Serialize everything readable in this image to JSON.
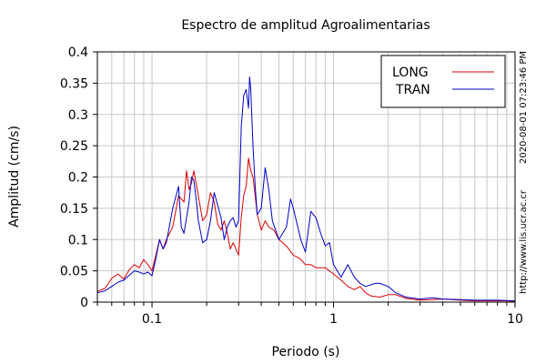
{
  "chart_data": {
    "type": "line",
    "title": "Espectro de amplitud Agroalimentarias",
    "xlabel": "Periodo (s)",
    "ylabel": "Amplitud (cm/s)",
    "x_scale": "log",
    "xlim": [
      0.05,
      10
    ],
    "ylim": [
      0,
      0.4
    ],
    "grid": true,
    "legend_position": "top-right",
    "x_ticks": [
      {
        "value": 0.1,
        "label": "0.1"
      },
      {
        "value": 1,
        "label": "1"
      },
      {
        "value": 10,
        "label": "10"
      }
    ],
    "y_ticks": [
      {
        "value": 0,
        "label": "0"
      },
      {
        "value": 0.05,
        "label": "0.05"
      },
      {
        "value": 0.1,
        "label": "0.1"
      },
      {
        "value": 0.15,
        "label": "0.15"
      },
      {
        "value": 0.2,
        "label": "0.2"
      },
      {
        "value": 0.25,
        "label": "0.25"
      },
      {
        "value": 0.3,
        "label": "0.3"
      },
      {
        "value": 0.35,
        "label": "0.35"
      },
      {
        "value": 0.4,
        "label": "0.4"
      }
    ],
    "series": [
      {
        "name": "LONG",
        "color": "#dd0000",
        "points": [
          [
            0.05,
            0.017
          ],
          [
            0.055,
            0.022
          ],
          [
            0.06,
            0.038
          ],
          [
            0.065,
            0.045
          ],
          [
            0.07,
            0.037
          ],
          [
            0.075,
            0.052
          ],
          [
            0.08,
            0.06
          ],
          [
            0.085,
            0.055
          ],
          [
            0.09,
            0.068
          ],
          [
            0.095,
            0.06
          ],
          [
            0.1,
            0.05
          ],
          [
            0.105,
            0.075
          ],
          [
            0.11,
            0.1
          ],
          [
            0.115,
            0.085
          ],
          [
            0.12,
            0.1
          ],
          [
            0.13,
            0.12
          ],
          [
            0.14,
            0.17
          ],
          [
            0.15,
            0.16
          ],
          [
            0.155,
            0.21
          ],
          [
            0.16,
            0.18
          ],
          [
            0.165,
            0.19
          ],
          [
            0.17,
            0.21
          ],
          [
            0.18,
            0.17
          ],
          [
            0.19,
            0.13
          ],
          [
            0.2,
            0.14
          ],
          [
            0.21,
            0.175
          ],
          [
            0.22,
            0.16
          ],
          [
            0.23,
            0.125
          ],
          [
            0.24,
            0.115
          ],
          [
            0.25,
            0.13
          ],
          [
            0.26,
            0.11
          ],
          [
            0.27,
            0.085
          ],
          [
            0.28,
            0.095
          ],
          [
            0.3,
            0.075
          ],
          [
            0.31,
            0.135
          ],
          [
            0.32,
            0.17
          ],
          [
            0.33,
            0.185
          ],
          [
            0.34,
            0.23
          ],
          [
            0.35,
            0.21
          ],
          [
            0.36,
            0.2
          ],
          [
            0.37,
            0.17
          ],
          [
            0.38,
            0.14
          ],
          [
            0.4,
            0.115
          ],
          [
            0.42,
            0.13
          ],
          [
            0.44,
            0.12
          ],
          [
            0.47,
            0.115
          ],
          [
            0.5,
            0.1
          ],
          [
            0.55,
            0.09
          ],
          [
            0.6,
            0.075
          ],
          [
            0.65,
            0.07
          ],
          [
            0.7,
            0.06
          ],
          [
            0.75,
            0.06
          ],
          [
            0.8,
            0.055
          ],
          [
            0.9,
            0.055
          ],
          [
            1.0,
            0.045
          ],
          [
            1.1,
            0.035
          ],
          [
            1.2,
            0.025
          ],
          [
            1.3,
            0.02
          ],
          [
            1.4,
            0.025
          ],
          [
            1.5,
            0.015
          ],
          [
            1.6,
            0.01
          ],
          [
            1.8,
            0.008
          ],
          [
            2.0,
            0.012
          ],
          [
            2.2,
            0.012
          ],
          [
            2.5,
            0.006
          ],
          [
            3,
            0.003
          ],
          [
            3.5,
            0.004
          ],
          [
            4,
            0.005
          ],
          [
            5,
            0.003
          ],
          [
            6,
            0.002
          ],
          [
            7,
            0.002
          ],
          [
            8,
            0.002
          ],
          [
            9,
            0.002
          ],
          [
            10,
            0.001
          ]
        ]
      },
      {
        "name": "TRAN",
        "color": "#0000cc",
        "points": [
          [
            0.05,
            0.015
          ],
          [
            0.055,
            0.018
          ],
          [
            0.06,
            0.025
          ],
          [
            0.065,
            0.032
          ],
          [
            0.07,
            0.035
          ],
          [
            0.075,
            0.043
          ],
          [
            0.08,
            0.05
          ],
          [
            0.085,
            0.048
          ],
          [
            0.09,
            0.045
          ],
          [
            0.095,
            0.048
          ],
          [
            0.1,
            0.042
          ],
          [
            0.105,
            0.07
          ],
          [
            0.11,
            0.1
          ],
          [
            0.115,
            0.085
          ],
          [
            0.12,
            0.095
          ],
          [
            0.13,
            0.15
          ],
          [
            0.14,
            0.185
          ],
          [
            0.145,
            0.12
          ],
          [
            0.15,
            0.11
          ],
          [
            0.155,
            0.135
          ],
          [
            0.16,
            0.16
          ],
          [
            0.165,
            0.2
          ],
          [
            0.17,
            0.195
          ],
          [
            0.175,
            0.165
          ],
          [
            0.18,
            0.13
          ],
          [
            0.19,
            0.095
          ],
          [
            0.2,
            0.1
          ],
          [
            0.21,
            0.13
          ],
          [
            0.22,
            0.175
          ],
          [
            0.23,
            0.155
          ],
          [
            0.24,
            0.135
          ],
          [
            0.25,
            0.1
          ],
          [
            0.26,
            0.12
          ],
          [
            0.27,
            0.13
          ],
          [
            0.28,
            0.135
          ],
          [
            0.29,
            0.12
          ],
          [
            0.3,
            0.13
          ],
          [
            0.31,
            0.28
          ],
          [
            0.32,
            0.33
          ],
          [
            0.33,
            0.34
          ],
          [
            0.34,
            0.31
          ],
          [
            0.345,
            0.36
          ],
          [
            0.35,
            0.34
          ],
          [
            0.36,
            0.25
          ],
          [
            0.37,
            0.185
          ],
          [
            0.38,
            0.14
          ],
          [
            0.4,
            0.15
          ],
          [
            0.42,
            0.215
          ],
          [
            0.44,
            0.18
          ],
          [
            0.46,
            0.13
          ],
          [
            0.5,
            0.1
          ],
          [
            0.55,
            0.12
          ],
          [
            0.58,
            0.165
          ],
          [
            0.6,
            0.15
          ],
          [
            0.63,
            0.125
          ],
          [
            0.66,
            0.1
          ],
          [
            0.7,
            0.08
          ],
          [
            0.75,
            0.145
          ],
          [
            0.8,
            0.135
          ],
          [
            0.85,
            0.11
          ],
          [
            0.9,
            0.09
          ],
          [
            0.95,
            0.095
          ],
          [
            1.0,
            0.06
          ],
          [
            1.1,
            0.04
          ],
          [
            1.2,
            0.06
          ],
          [
            1.3,
            0.04
          ],
          [
            1.4,
            0.03
          ],
          [
            1.5,
            0.025
          ],
          [
            1.7,
            0.03
          ],
          [
            1.8,
            0.03
          ],
          [
            2.0,
            0.025
          ],
          [
            2.2,
            0.015
          ],
          [
            2.5,
            0.008
          ],
          [
            3,
            0.005
          ],
          [
            3.5,
            0.007
          ],
          [
            4,
            0.005
          ],
          [
            5,
            0.004
          ],
          [
            6,
            0.003
          ],
          [
            8,
            0.003
          ],
          [
            10,
            0.002
          ]
        ]
      }
    ]
  },
  "side_text": {
    "timestamp": "2020-08-01 07:23:46 PM",
    "url": "http://www.lis.ucr.ac.cr"
  }
}
